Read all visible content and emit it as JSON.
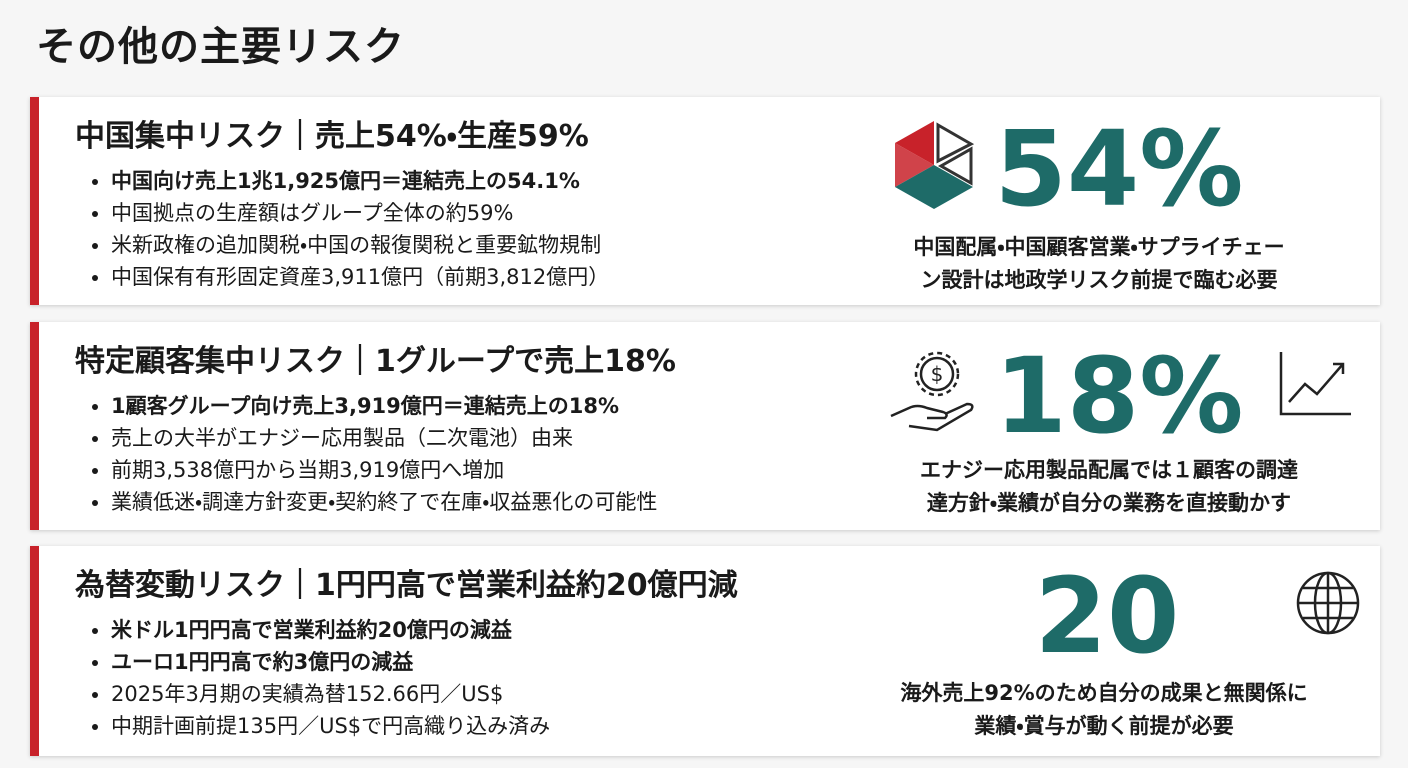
{
  "title": "その他の主要リスク",
  "cards": [
    {
      "heading": "中国集中リスク｜売上54%・生産59%",
      "bullets": [
        "中国向け売上1兆1,925億円＝連結売上の54.1%",
        "中国拠点の生産額はグループ全体の約59%",
        "米新政権の追加関税・中国の報復関税と重要鉱物規制",
        "中国保有有形固定資産3,911億円（前期3,812億円）"
      ],
      "figure": "54%",
      "caption_lines": [
        "中国配属・中国顧客営業・サプライチェー",
        "ン設計は地政学リスク前提で臨む必要"
      ]
    },
    {
      "heading": "特定顧客集中リスク｜1グループで売上18%",
      "bullets": [
        "1顧客グループ向け売上3,919億円＝連結売上の18%",
        "売上の大半がエナジー応用製品（二次電池）由来",
        "前期3,538億円から当期3,919億円へ増加",
        "業績低迷・調達方針変更・契約終了で在庫・収益悪化の可能性"
      ],
      "figure": "18%",
      "caption_lines": [
        "エナジー応用製品配属では１顧客の調達",
        "達方針・業績が自分の業務を直接動かす"
      ]
    },
    {
      "heading": "為替変動リスク｜1円円高で営業利益約20億円減",
      "bullets": [
        "米ドル1円円高で営業利益約20億円の減益",
        "ユーロ1円円高で約3億円の減益",
        "2025年3月期の実績為替152.66円／US$",
        "中期計画前提135円／US$で円高織り込み済み"
      ],
      "figure": "20",
      "caption_lines": [
        "海外売上92%のため自分の成果と無関係に",
        "業績・賞与が動く前提が必要"
      ]
    }
  ]
}
